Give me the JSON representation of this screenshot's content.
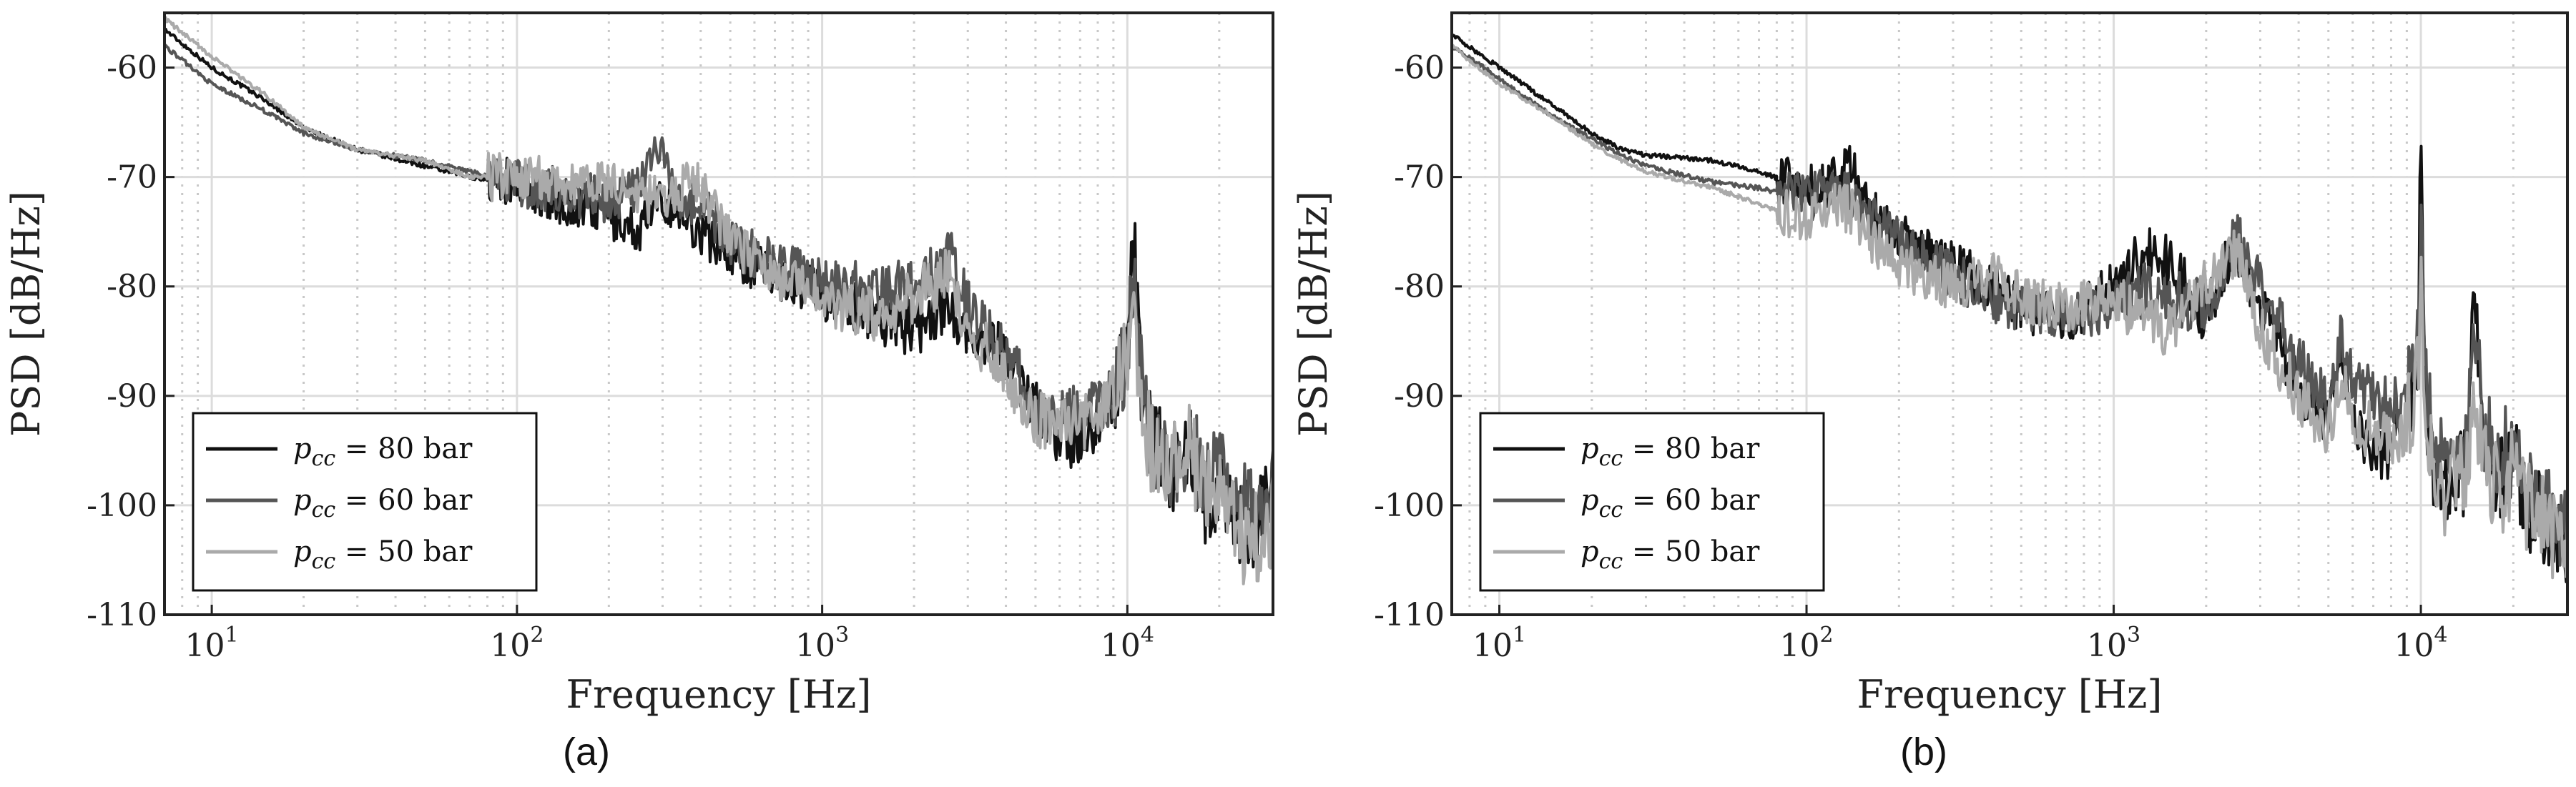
{
  "chart_data": [
    {
      "type": "line",
      "panel_label": "(a)",
      "xscale": "log",
      "xlim": [
        7,
        30000
      ],
      "ylim": [
        -110,
        -55
      ],
      "xlabel": "Frequency [Hz]",
      "ylabel": "PSD [dB/Hz]",
      "xtick_labels": [
        "10",
        "10",
        "10",
        "10"
      ],
      "xtick_exponents": [
        "1",
        "2",
        "3",
        "4"
      ],
      "xtick_values": [
        10,
        100,
        1000,
        10000
      ],
      "ytick_values": [
        -60,
        -70,
        -80,
        -90,
        -100,
        -110
      ],
      "ytick_labels": [
        "-60",
        "-70",
        "-80",
        "-90",
        "-100",
        "-110"
      ],
      "grid": true,
      "legend_position": "lower-left",
      "series": [
        {
          "name": "p_cc = 80 bar",
          "legend_math": "p",
          "legend_sub": "cc",
          "legend_rest": " = 80 bar",
          "color": "#111111",
          "x": [
            7,
            10,
            15,
            20,
            30,
            50,
            70,
            100,
            150,
            200,
            250,
            300,
            400,
            500,
            700,
            1000,
            1500,
            2000,
            2600,
            3000,
            4000,
            5000,
            6000,
            7000,
            8000,
            9000,
            10000,
            10500,
            11000,
            12000,
            14000,
            16000,
            18000,
            20000,
            24000,
            28000,
            30000
          ],
          "y": [
            -56.5,
            -60,
            -63,
            -65.5,
            -67.5,
            -69,
            -70,
            -70.5,
            -72.5,
            -73.5,
            -75,
            -72,
            -75,
            -77,
            -79,
            -80.5,
            -82.5,
            -84,
            -81.5,
            -84,
            -86,
            -91,
            -94,
            -94,
            -92.5,
            -90,
            -85,
            -76,
            -88,
            -94,
            -97,
            -95,
            -100,
            -98,
            -102,
            -101,
            -99
          ]
        },
        {
          "name": "p_cc = 60 bar",
          "legend_math": "p",
          "legend_sub": "cc",
          "legend_rest": " = 60 bar",
          "color": "#555555",
          "x": [
            7,
            10,
            15,
            20,
            30,
            50,
            70,
            100,
            150,
            200,
            250,
            290,
            300,
            350,
            400,
            500,
            700,
            1000,
            1500,
            2000,
            2600,
            3000,
            4000,
            5000,
            6000,
            7000,
            8000,
            9000,
            10000,
            10500,
            11000,
            12000,
            14000,
            16000,
            18000,
            20000,
            24000,
            28000,
            30000
          ],
          "y": [
            -58,
            -61.5,
            -64,
            -66,
            -67.5,
            -68.5,
            -69.5,
            -70.5,
            -71.5,
            -72,
            -71,
            -67.5,
            -68.5,
            -72,
            -72.5,
            -76,
            -78,
            -79.5,
            -80.5,
            -80,
            -77,
            -82,
            -86,
            -91,
            -92,
            -91,
            -91,
            -90,
            -86,
            -78,
            -87,
            -95,
            -96,
            -94,
            -98,
            -97,
            -100,
            -102,
            -98
          ]
        },
        {
          "name": "p_cc = 50 bar",
          "legend_math": "p",
          "legend_sub": "cc",
          "legend_rest": " = 50 bar",
          "color": "#aaaaaa",
          "x": [
            7,
            10,
            15,
            20,
            30,
            50,
            70,
            100,
            150,
            200,
            250,
            300,
            350,
            400,
            500,
            700,
            1000,
            1500,
            2000,
            2600,
            3000,
            4000,
            5000,
            6000,
            7000,
            8000,
            9000,
            10000,
            10500,
            11000,
            12000,
            14000,
            16000,
            18000,
            20000,
            24000,
            28000,
            30000
          ],
          "y": [
            -55.5,
            -59,
            -62.5,
            -65.5,
            -67.5,
            -68.5,
            -70,
            -70,
            -70.5,
            -70.5,
            -72,
            -72,
            -71,
            -70.5,
            -76,
            -79,
            -81,
            -82.5,
            -81,
            -79,
            -84,
            -88,
            -92,
            -93,
            -92.5,
            -92,
            -89,
            -87,
            -80,
            -90,
            -95,
            -96,
            -95,
            -99,
            -99,
            -103,
            -103,
            -101
          ]
        }
      ]
    },
    {
      "type": "line",
      "panel_label": "(b)",
      "xscale": "log",
      "xlim": [
        7,
        30000
      ],
      "ylim": [
        -110,
        -55
      ],
      "xlabel": "Frequency [Hz]",
      "ylabel": "PSD [dB/Hz]",
      "xtick_labels": [
        "10",
        "10",
        "10",
        "10"
      ],
      "xtick_exponents": [
        "1",
        "2",
        "3",
        "4"
      ],
      "xtick_values": [
        10,
        100,
        1000,
        10000
      ],
      "ytick_values": [
        -60,
        -70,
        -80,
        -90,
        -100,
        -110
      ],
      "ytick_labels": [
        "-60",
        "-70",
        "-80",
        "-90",
        "-100",
        "-110"
      ],
      "grid": true,
      "legend_position": "lower-left",
      "series": [
        {
          "name": "p_cc = 80 bar",
          "legend_math": "p",
          "legend_sub": "cc",
          "legend_rest": " = 80 bar",
          "color": "#111111",
          "x": [
            7,
            10,
            15,
            20,
            25,
            30,
            50,
            70,
            100,
            120,
            140,
            150,
            200,
            300,
            400,
            500,
            700,
            1000,
            1300,
            1500,
            2000,
            2500,
            3000,
            4000,
            5000,
            5500,
            6000,
            7000,
            8000,
            9000,
            9800,
            10000,
            10300,
            11000,
            12000,
            14000,
            15000,
            16000,
            18000,
            20000,
            22000,
            24000,
            28000,
            30000
          ],
          "y": [
            -57,
            -60,
            -63.5,
            -66,
            -67.5,
            -68,
            -68.5,
            -69.5,
            -71,
            -70.5,
            -69,
            -72,
            -75.5,
            -78,
            -80,
            -82,
            -83,
            -80,
            -76.5,
            -77.5,
            -83,
            -76,
            -82,
            -89,
            -92,
            -86,
            -92,
            -95,
            -95,
            -92,
            -85,
            -62,
            -90,
            -96,
            -99,
            -97,
            -80,
            -94,
            -98,
            -95,
            -100,
            -101,
            -102,
            -104
          ]
        },
        {
          "name": "p_cc = 60 bar",
          "legend_math": "p",
          "legend_sub": "cc",
          "legend_rest": " = 60 bar",
          "color": "#555555",
          "x": [
            7,
            10,
            15,
            20,
            25,
            30,
            50,
            70,
            100,
            120,
            140,
            150,
            200,
            300,
            400,
            500,
            700,
            1000,
            1300,
            1500,
            2000,
            2500,
            3000,
            4000,
            5000,
            5500,
            6000,
            7000,
            8000,
            9000,
            9800,
            10000,
            10300,
            11000,
            12000,
            14000,
            15000,
            16000,
            18000,
            20000,
            22000,
            24000,
            28000,
            30000
          ],
          "y": [
            -58,
            -61,
            -64.5,
            -66.5,
            -68,
            -69,
            -70.5,
            -71,
            -72,
            -71,
            -72,
            -73,
            -76,
            -79,
            -81,
            -82,
            -83,
            -82,
            -80,
            -81,
            -82,
            -75.5,
            -80,
            -87,
            -91,
            -85,
            -89,
            -90,
            -91,
            -90,
            -86,
            -75,
            -89,
            -94,
            -97,
            -95,
            -84,
            -93,
            -96,
            -94,
            -98,
            -99,
            -101,
            -103
          ]
        },
        {
          "name": "p_cc = 50 bar",
          "legend_math": "p",
          "legend_sub": "cc",
          "legend_rest": " = 50 bar",
          "color": "#aaaaaa",
          "x": [
            7,
            10,
            15,
            20,
            25,
            30,
            50,
            70,
            100,
            120,
            140,
            150,
            200,
            300,
            400,
            500,
            700,
            1000,
            1300,
            1500,
            2000,
            2500,
            3000,
            4000,
            5000,
            5500,
            6000,
            7000,
            8000,
            9000,
            9800,
            10000,
            10300,
            11000,
            12000,
            14000,
            15000,
            16000,
            18000,
            20000,
            22000,
            24000,
            28000,
            30000
          ],
          "y": [
            -58,
            -61.5,
            -64.5,
            -67,
            -68.5,
            -69.5,
            -71,
            -72.5,
            -74,
            -72.5,
            -73,
            -75,
            -78,
            -80,
            -79,
            -81,
            -82,
            -81,
            -83,
            -84,
            -80,
            -77,
            -84,
            -90,
            -93,
            -88,
            -93,
            -93,
            -94,
            -93,
            -88,
            -78,
            -92,
            -96,
            -99,
            -97,
            -90,
            -96,
            -99,
            -97,
            -100,
            -101,
            -103,
            -105
          ]
        }
      ]
    }
  ]
}
